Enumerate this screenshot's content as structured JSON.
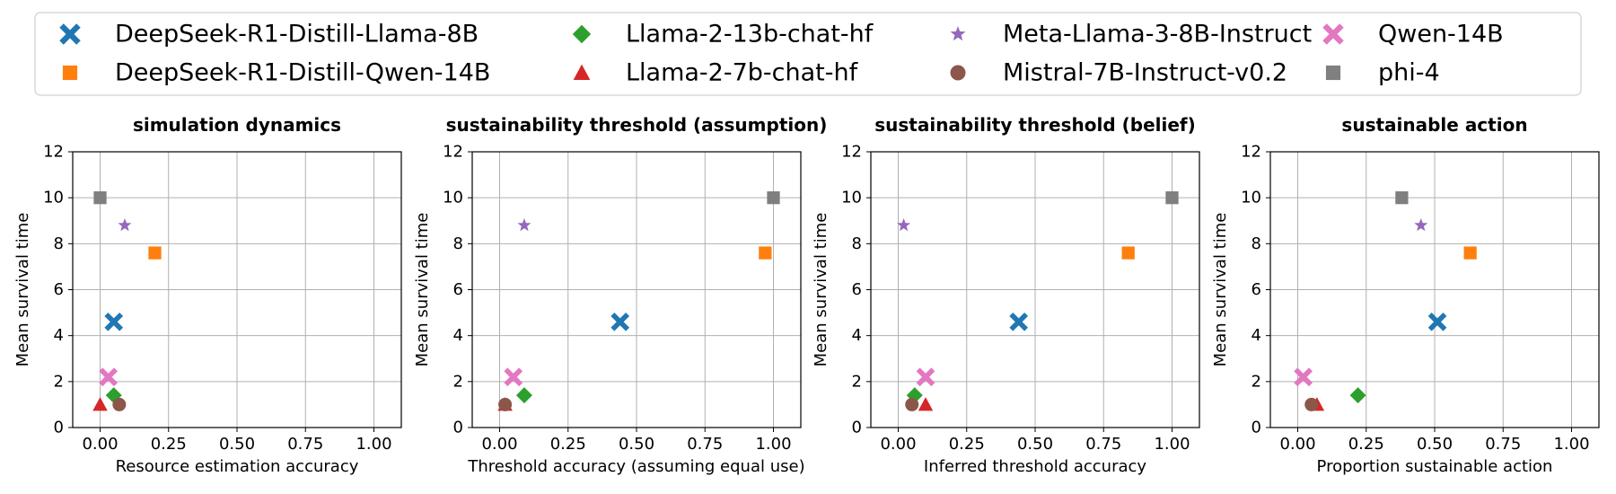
{
  "legend": {
    "location": "top",
    "entries": [
      {
        "name": "DeepSeek-R1-Distill-Llama-8B",
        "color": "#1f77b4",
        "marker": "x-filled"
      },
      {
        "name": "DeepSeek-R1-Distill-Qwen-14B",
        "color": "#ff7f0e",
        "marker": "square"
      },
      {
        "name": "Llama-2-13b-chat-hf",
        "color": "#2ca02c",
        "marker": "diamond"
      },
      {
        "name": "Llama-2-7b-chat-hf",
        "color": "#d62728",
        "marker": "triangle"
      },
      {
        "name": "Meta-Llama-3-8B-Instruct",
        "color": "#9467bd",
        "marker": "star"
      },
      {
        "name": "Mistral-7B-Instruct-v0.2",
        "color": "#8c564b",
        "marker": "circle"
      },
      {
        "name": "Qwen-14B",
        "color": "#e377c2",
        "marker": "x-filled"
      },
      {
        "name": "phi-4",
        "color": "#7f7f7f",
        "marker": "square"
      }
    ]
  },
  "chart_data": [
    {
      "type": "scatter",
      "title": "simulation dynamics",
      "xlabel": "Resource estimation accuracy",
      "ylabel": "Mean survival time",
      "xlim": [
        -0.1,
        1.1
      ],
      "ylim": [
        0,
        12
      ],
      "xticks": [
        0.0,
        0.25,
        0.5,
        0.75,
        1.0
      ],
      "xtick_labels": [
        "0.00",
        "0.25",
        "0.50",
        "0.75",
        "1.00"
      ],
      "yticks": [
        0,
        2,
        4,
        6,
        8,
        10,
        12
      ],
      "ytick_labels": [
        "0",
        "2",
        "4",
        "6",
        "8",
        "10",
        "12"
      ],
      "grid": true,
      "points": [
        {
          "series": "DeepSeek-R1-Distill-Llama-8B",
          "x": 0.05,
          "y": 4.6
        },
        {
          "series": "DeepSeek-R1-Distill-Qwen-14B",
          "x": 0.2,
          "y": 7.6
        },
        {
          "series": "Llama-2-13b-chat-hf",
          "x": 0.05,
          "y": 1.4
        },
        {
          "series": "Llama-2-7b-chat-hf",
          "x": 0.0,
          "y": 1.0
        },
        {
          "series": "Meta-Llama-3-8B-Instruct",
          "x": 0.09,
          "y": 8.8
        },
        {
          "series": "Mistral-7B-Instruct-v0.2",
          "x": 0.07,
          "y": 1.0
        },
        {
          "series": "Qwen-14B",
          "x": 0.03,
          "y": 2.2
        },
        {
          "series": "phi-4",
          "x": 0.0,
          "y": 10.0
        }
      ]
    },
    {
      "type": "scatter",
      "title": "sustainability threshold (assumption)",
      "xlabel": "Threshold accuracy (assuming equal use)",
      "ylabel": "Mean survival time",
      "xlim": [
        -0.1,
        1.1
      ],
      "ylim": [
        0,
        12
      ],
      "xticks": [
        0.0,
        0.25,
        0.5,
        0.75,
        1.0
      ],
      "xtick_labels": [
        "0.00",
        "0.25",
        "0.50",
        "0.75",
        "1.00"
      ],
      "yticks": [
        0,
        2,
        4,
        6,
        8,
        10,
        12
      ],
      "ytick_labels": [
        "0",
        "2",
        "4",
        "6",
        "8",
        "10",
        "12"
      ],
      "grid": true,
      "points": [
        {
          "series": "DeepSeek-R1-Distill-Llama-8B",
          "x": 0.44,
          "y": 4.6
        },
        {
          "series": "DeepSeek-R1-Distill-Qwen-14B",
          "x": 0.97,
          "y": 7.6
        },
        {
          "series": "Llama-2-13b-chat-hf",
          "x": 0.09,
          "y": 1.4
        },
        {
          "series": "Llama-2-7b-chat-hf",
          "x": 0.02,
          "y": 1.0
        },
        {
          "series": "Meta-Llama-3-8B-Instruct",
          "x": 0.09,
          "y": 8.8
        },
        {
          "series": "Mistral-7B-Instruct-v0.2",
          "x": 0.02,
          "y": 1.0
        },
        {
          "series": "Qwen-14B",
          "x": 0.05,
          "y": 2.2
        },
        {
          "series": "phi-4",
          "x": 1.0,
          "y": 10.0
        }
      ]
    },
    {
      "type": "scatter",
      "title": "sustainability threshold (belief)",
      "xlabel": "Inferred threshold accuracy",
      "ylabel": "Mean survival time",
      "xlim": [
        -0.1,
        1.1
      ],
      "ylim": [
        0,
        12
      ],
      "xticks": [
        0.0,
        0.25,
        0.5,
        0.75,
        1.0
      ],
      "xtick_labels": [
        "0.00",
        "0.25",
        "0.50",
        "0.75",
        "1.00"
      ],
      "yticks": [
        0,
        2,
        4,
        6,
        8,
        10,
        12
      ],
      "ytick_labels": [
        "0",
        "2",
        "4",
        "6",
        "8",
        "10",
        "12"
      ],
      "grid": true,
      "points": [
        {
          "series": "DeepSeek-R1-Distill-Llama-8B",
          "x": 0.44,
          "y": 4.6
        },
        {
          "series": "DeepSeek-R1-Distill-Qwen-14B",
          "x": 0.84,
          "y": 7.6
        },
        {
          "series": "Llama-2-13b-chat-hf",
          "x": 0.06,
          "y": 1.4
        },
        {
          "series": "Llama-2-7b-chat-hf",
          "x": 0.1,
          "y": 1.0
        },
        {
          "series": "Meta-Llama-3-8B-Instruct",
          "x": 0.02,
          "y": 8.8
        },
        {
          "series": "Mistral-7B-Instruct-v0.2",
          "x": 0.05,
          "y": 1.0
        },
        {
          "series": "Qwen-14B",
          "x": 0.1,
          "y": 2.2
        },
        {
          "series": "phi-4",
          "x": 1.0,
          "y": 10.0
        }
      ]
    },
    {
      "type": "scatter",
      "title": "sustainable action",
      "xlabel": "Proportion sustainable action",
      "ylabel": "Mean survival time",
      "xlim": [
        -0.1,
        1.1
      ],
      "ylim": [
        0,
        12
      ],
      "xticks": [
        0.0,
        0.25,
        0.5,
        0.75,
        1.0
      ],
      "xtick_labels": [
        "0.00",
        "0.25",
        "0.50",
        "0.75",
        "1.00"
      ],
      "yticks": [
        0,
        2,
        4,
        6,
        8,
        10,
        12
      ],
      "ytick_labels": [
        "0",
        "2",
        "4",
        "6",
        "8",
        "10",
        "12"
      ],
      "grid": true,
      "points": [
        {
          "series": "DeepSeek-R1-Distill-Llama-8B",
          "x": 0.51,
          "y": 4.6
        },
        {
          "series": "DeepSeek-R1-Distill-Qwen-14B",
          "x": 0.63,
          "y": 7.6
        },
        {
          "series": "Llama-2-13b-chat-hf",
          "x": 0.22,
          "y": 1.4
        },
        {
          "series": "Llama-2-7b-chat-hf",
          "x": 0.07,
          "y": 1.0
        },
        {
          "series": "Meta-Llama-3-8B-Instruct",
          "x": 0.45,
          "y": 8.8
        },
        {
          "series": "Mistral-7B-Instruct-v0.2",
          "x": 0.05,
          "y": 1.0
        },
        {
          "series": "Qwen-14B",
          "x": 0.02,
          "y": 2.2
        },
        {
          "series": "phi-4",
          "x": 0.38,
          "y": 10.0
        }
      ]
    }
  ]
}
